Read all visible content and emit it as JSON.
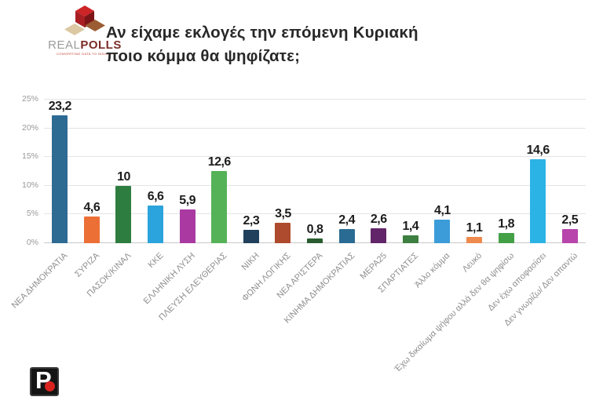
{
  "header": {
    "logo": {
      "brand_real": "REAL",
      "brand_polls": "POLLS",
      "tagline": "CONVERTING DATA TO INSIGHT"
    },
    "title_line1": "Αν είχαμε εκλογές την επόμενη Κυριακή",
    "title_line2": "ποιο κόμμα θα ψηφίζατε;"
  },
  "chart_data": {
    "type": "bar",
    "title": "Αν είχαμε εκλογές την επόμενη Κυριακή ποιο κόμμα θα ψηφίζατε;",
    "xlabel": "",
    "ylabel": "",
    "ylim": [
      0,
      25
    ],
    "grid": true,
    "legend": false,
    "y_ticks": [
      "0%",
      "5%",
      "10%",
      "15%",
      "20%",
      "25%"
    ],
    "categories": [
      "ΝΕΑ ΔΗΜΟΚΡΑΤΙΑ",
      "ΣΥΡΙΖΑ",
      "ΠΑΣΟΚ/ΚΙΝΑΛ",
      "ΚΚΕ",
      "ΕΛΛΗΝΙΚΗ ΛΥΣΗ",
      "ΠΛΕΥΣΗ ΕΛΕΥΘΕΡΙΑΣ",
      "ΝΙΚΗ",
      "ΦΩΝΗ ΛΟΓΙΚΗΣ",
      "ΝΕΑ ΑΡΙΣΤΕΡΑ",
      "ΚΙΝΗΜΑ ΔΗΜΟΚΡΑΤΙΑΣ",
      "ΜΕΡΑ25",
      "ΣΠΑΡΤΙΑΤΕΣ",
      "Άλλο κόμμα",
      "Λευκό",
      "Έχω δικαίωμα ψήφου αλλά δεν θα ψηφίσω",
      "Δεν έχω αποφασίσει",
      "Δεν γνωρίζω/ Δεν απαντώ"
    ],
    "values": [
      23.2,
      4.6,
      10,
      6.6,
      5.9,
      12.6,
      2.3,
      3.5,
      0.8,
      2.4,
      2.6,
      1.4,
      4.1,
      1.1,
      1.8,
      14.6,
      2.5
    ],
    "value_labels": [
      "23,2",
      "4,6",
      "10",
      "6,6",
      "5,9",
      "12,6",
      "2,3",
      "3,5",
      "0,8",
      "2,4",
      "2,6",
      "1,4",
      "4,1",
      "1,1",
      "1,8",
      "14,6",
      "2,5"
    ],
    "bar_colors": [
      "#2e6b93",
      "#ec7036",
      "#2e7d40",
      "#2ba3dc",
      "#aa3aa2",
      "#55b257",
      "#20405c",
      "#ae4a2e",
      "#2a5c31",
      "#2a6b94",
      "#632569",
      "#3c7f40",
      "#3b9cd9",
      "#ef8a4e",
      "#43a047",
      "#2cb3e5",
      "#b845ab"
    ]
  },
  "footer": {
    "logo_letter": "P",
    "logo_dot_color": "#d8231f"
  }
}
